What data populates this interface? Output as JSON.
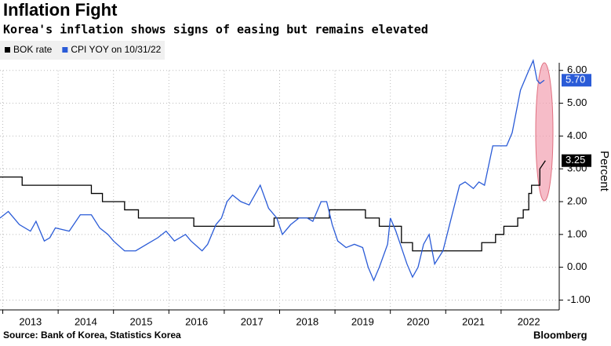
{
  "chart_data": {
    "type": "line",
    "title": "Inflation Fight",
    "subtitle": "Korea's inflation shows signs of easing but remains elevated",
    "y_label": "Percent",
    "source": "Source: Bank of Korea, Statistics Korea",
    "brand": "Bloomberg",
    "xlim": [
      2012.95,
      2023.05
    ],
    "xticks": [
      2013,
      2014,
      2015,
      2016,
      2017,
      2018,
      2019,
      2020,
      2021,
      2022
    ],
    "ylim": [
      -1.3,
      6.95
    ],
    "yticks": [
      {
        "value": -1,
        "label": "-1.00"
      },
      {
        "value": 0,
        "label": "0.00"
      },
      {
        "value": 1,
        "label": "1.00"
      },
      {
        "value": 2,
        "label": "2.00"
      },
      {
        "value": 3,
        "label": "3.00"
      },
      {
        "value": 4,
        "label": "4.00"
      },
      {
        "value": 5,
        "label": "5.00"
      },
      {
        "value": 6,
        "label": "6.00"
      }
    ],
    "grid": true,
    "legend": "top-left",
    "series": [
      {
        "name": "BOK rate",
        "color": "#000000",
        "x": [
          2012.95,
          2013.35,
          2013.35,
          2014.6,
          2014.6,
          2014.8,
          2014.8,
          2015.2,
          2015.2,
          2015.45,
          2015.45,
          2016.45,
          2016.45,
          2017.9,
          2017.9,
          2018.9,
          2018.9,
          2019.55,
          2019.55,
          2019.8,
          2019.8,
          2020.2,
          2020.2,
          2020.4,
          2020.4,
          2021.65,
          2021.65,
          2021.9,
          2021.9,
          2022.05,
          2022.05,
          2022.3,
          2022.3,
          2022.4,
          2022.4,
          2022.5,
          2022.5,
          2022.55,
          2022.55,
          2022.7,
          2022.7,
          2022.8
        ],
        "values": [
          2.75,
          2.75,
          2.5,
          2.5,
          2.25,
          2.25,
          2.0,
          2.0,
          1.75,
          1.75,
          1.5,
          1.5,
          1.25,
          1.25,
          1.5,
          1.5,
          1.75,
          1.75,
          1.5,
          1.5,
          1.25,
          1.25,
          0.75,
          0.75,
          0.5,
          0.5,
          0.75,
          0.75,
          1.0,
          1.0,
          1.25,
          1.25,
          1.5,
          1.5,
          1.75,
          1.75,
          2.25,
          2.25,
          2.5,
          2.5,
          3.0,
          3.25
        ],
        "value_labels": [
          null,
          null,
          null,
          null,
          null,
          null,
          null,
          null,
          null,
          null,
          null,
          null,
          null,
          null,
          null,
          null,
          null,
          null,
          null,
          null,
          null,
          null,
          null,
          null,
          null,
          null,
          null,
          null,
          null,
          null,
          null,
          null,
          null,
          null,
          null,
          null,
          null,
          null,
          null,
          null,
          null,
          "3.25"
        ]
      },
      {
        "name": "CPI YOY on 10/31/22",
        "color": "#2a5bd7",
        "x": [
          2012.95,
          2013.1,
          2013.3,
          2013.5,
          2013.6,
          2013.75,
          2013.85,
          2013.95,
          2014.2,
          2014.4,
          2014.6,
          2014.75,
          2014.9,
          2015.0,
          2015.2,
          2015.4,
          2015.6,
          2015.8,
          2015.95,
          2016.1,
          2016.3,
          2016.4,
          2016.6,
          2016.7,
          2016.85,
          2016.95,
          2017.05,
          2017.15,
          2017.3,
          2017.45,
          2017.55,
          2017.65,
          2017.8,
          2017.95,
          2018.05,
          2018.2,
          2018.35,
          2018.5,
          2018.6,
          2018.75,
          2018.85,
          2018.95,
          2019.05,
          2019.2,
          2019.35,
          2019.5,
          2019.6,
          2019.7,
          2019.8,
          2019.95,
          2020.0,
          2020.1,
          2020.3,
          2020.4,
          2020.5,
          2020.6,
          2020.7,
          2020.8,
          2020.95,
          2021.1,
          2021.25,
          2021.35,
          2021.5,
          2021.6,
          2021.7,
          2021.85,
          2021.95,
          2022.1,
          2022.2,
          2022.35,
          2022.5,
          2022.58,
          2022.65,
          2022.7,
          2022.78
        ],
        "values": [
          1.5,
          1.7,
          1.3,
          1.1,
          1.4,
          0.8,
          0.9,
          1.2,
          1.1,
          1.6,
          1.6,
          1.2,
          1.0,
          0.8,
          0.5,
          0.5,
          0.7,
          0.9,
          1.1,
          0.8,
          1.0,
          0.8,
          0.5,
          0.7,
          1.3,
          1.5,
          2.0,
          2.2,
          2.0,
          1.9,
          2.2,
          2.5,
          1.8,
          1.5,
          1.0,
          1.3,
          1.5,
          1.5,
          1.4,
          2.0,
          2.0,
          1.3,
          0.8,
          0.6,
          0.7,
          0.6,
          0.0,
          -0.4,
          0.0,
          0.7,
          1.5,
          1.1,
          0.1,
          -0.3,
          0.0,
          0.7,
          1.0,
          0.1,
          0.5,
          1.5,
          2.5,
          2.6,
          2.4,
          2.6,
          2.5,
          3.7,
          3.7,
          3.7,
          4.1,
          5.4,
          6.0,
          6.3,
          5.7,
          5.6,
          5.7
        ],
        "value_labels": [
          null,
          null,
          null,
          null,
          null,
          null,
          null,
          null,
          null,
          null,
          null,
          null,
          null,
          null,
          null,
          null,
          null,
          null,
          null,
          null,
          null,
          null,
          null,
          null,
          null,
          null,
          null,
          null,
          null,
          null,
          null,
          null,
          null,
          null,
          null,
          null,
          null,
          null,
          null,
          null,
          null,
          null,
          null,
          null,
          null,
          null,
          null,
          null,
          null,
          null,
          null,
          null,
          null,
          null,
          null,
          null,
          null,
          null,
          null,
          null,
          null,
          null,
          null,
          null,
          null,
          null,
          null,
          null,
          null,
          null,
          null,
          null,
          null,
          null,
          "5.70"
        ]
      }
    ]
  }
}
